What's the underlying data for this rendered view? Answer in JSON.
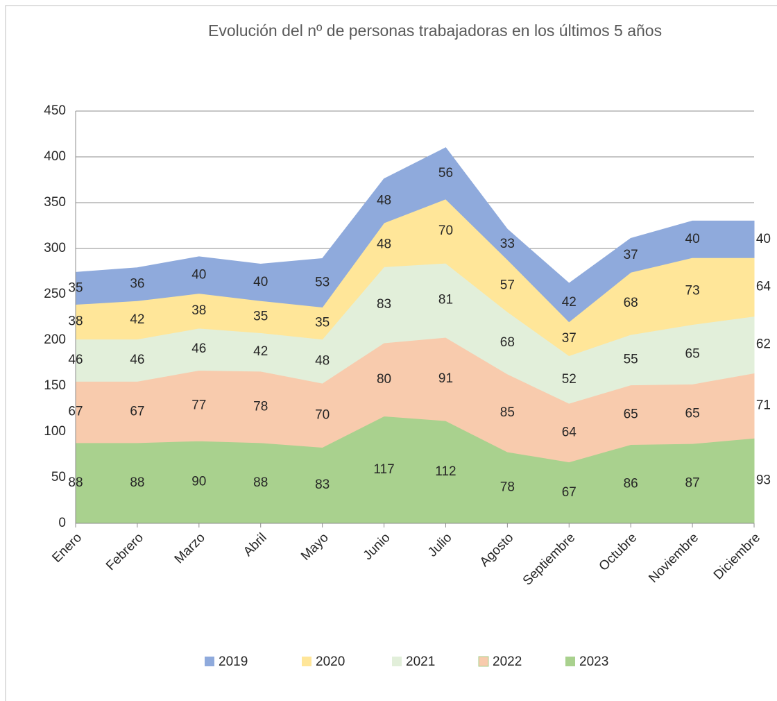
{
  "chart_data": {
    "type": "stacked-area",
    "title": "Evolución del nº de personas trabajadoras en los últimos 5 años",
    "categories": [
      "Enero",
      "Febrero",
      "Marzo",
      "Abril",
      "Mayo",
      "Junio",
      "Julio",
      "Agosto",
      "Septiembre",
      "Octubre",
      "Noviembre",
      "Diciembre"
    ],
    "series": [
      {
        "name": "2019",
        "color": "#8faadc",
        "values": [
          35,
          36,
          40,
          40,
          53,
          48,
          56,
          33,
          42,
          37,
          40,
          40
        ]
      },
      {
        "name": "2020",
        "color": "#ffe699",
        "values": [
          38,
          42,
          38,
          35,
          35,
          48,
          70,
          57,
          37,
          68,
          73,
          64
        ]
      },
      {
        "name": "2021",
        "color": "#e2efda",
        "values": [
          46,
          46,
          46,
          42,
          48,
          83,
          81,
          68,
          52,
          55,
          65,
          62
        ]
      },
      {
        "name": "2022",
        "color": "#f8cbad",
        "values": [
          67,
          67,
          77,
          78,
          70,
          80,
          91,
          85,
          64,
          65,
          65,
          71
        ]
      },
      {
        "name": "2023",
        "color": "#a9d18e",
        "values": [
          88,
          88,
          90,
          88,
          83,
          117,
          112,
          78,
          67,
          86,
          87,
          93
        ]
      }
    ],
    "ylim": [
      0,
      450
    ],
    "yticks": [
      0,
      50,
      100,
      150,
      200,
      250,
      300,
      350,
      400,
      450
    ],
    "grid": true,
    "legend": "bottom"
  }
}
